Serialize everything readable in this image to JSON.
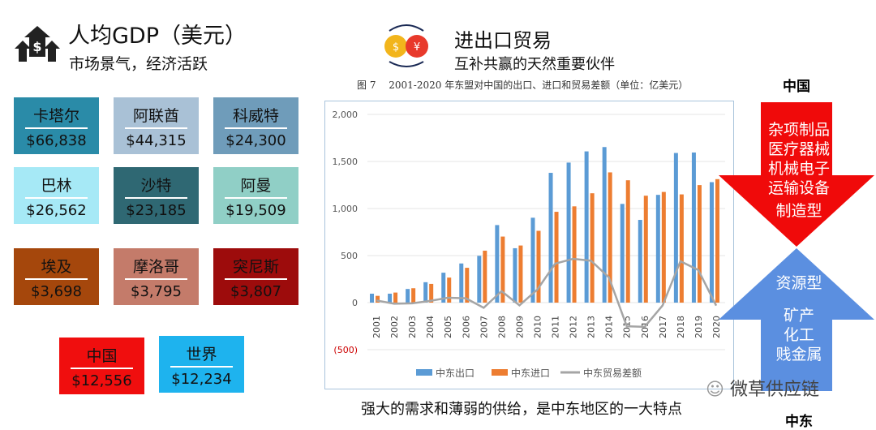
{
  "gdp": {
    "title": "人均GDP（美元）",
    "subtitle": "市场景气，经济活跃",
    "countries": [
      {
        "name": "卡塔尔",
        "value": "$66,838",
        "color": "#2a8ba8"
      },
      {
        "name": "阿联酋",
        "value": "$44,315",
        "color": "#a9c1d6"
      },
      {
        "name": "科威特",
        "value": "$24,300",
        "color": "#6f9cba"
      },
      {
        "name": "巴林",
        "value": "$26,562",
        "color": "#a6e9f6"
      },
      {
        "name": "沙特",
        "value": "$23,185",
        "color": "#2f6873"
      },
      {
        "name": "阿曼",
        "value": "$19,509",
        "color": "#90cfc6"
      },
      {
        "name": "埃及",
        "value": "$3,698",
        "color": "#a5470c"
      },
      {
        "name": "摩洛哥",
        "value": "$3,795",
        "color": "#c47b6a"
      },
      {
        "name": "突尼斯",
        "value": "$3,807",
        "color": "#9d0c0c"
      },
      {
        "name": "中国",
        "value": "$12,556",
        "color": "#f00e0e"
      },
      {
        "name": "世界",
        "value": "$12,234",
        "color": "#1eb3ee"
      }
    ]
  },
  "trade": {
    "title": "进出口贸易",
    "subtitle": "互补共赢的天然重要伙伴",
    "caption": "图 7　 2001-2020 年东盟对中国的出口、进口和贸易差额（单位：亿美元）",
    "bottom_caption": "强大的需求和薄弱的供给，是中东地区的一大特点"
  },
  "flow": {
    "top_label": "中国",
    "bottom_label": "中东",
    "china_exports": [
      "杂项制品",
      "医疗器械",
      "机械电子",
      "运输设备",
      "制造型"
    ],
    "mideast_exports": [
      "资源型",
      "矿产",
      "化工",
      "贱金属"
    ],
    "red": "#f00a0a",
    "blue": "#5b8fe0"
  },
  "watermark": "微草供应链",
  "chart_data": {
    "type": "bar",
    "categories": [
      "2001",
      "2002",
      "2003",
      "2004",
      "2005",
      "2006",
      "2007",
      "2008",
      "2009",
      "2010",
      "2011",
      "2012",
      "2013",
      "2014",
      "2015",
      "2016",
      "2017",
      "2018",
      "2019",
      "2020"
    ],
    "series": [
      {
        "name": "中东出口",
        "type": "bar",
        "color": "#5b9bd5",
        "values": [
          95,
          95,
          145,
          217,
          318,
          416,
          497,
          824,
          578,
          902,
          1379,
          1488,
          1607,
          1653,
          1049,
          879,
          1145,
          1590,
          1595,
          1280
        ]
      },
      {
        "name": "中东进口",
        "type": "bar",
        "color": "#ed7d31",
        "values": [
          72,
          107,
          153,
          199,
          266,
          370,
          552,
          702,
          607,
          763,
          965,
          1023,
          1162,
          1384,
          1300,
          1136,
          1176,
          1150,
          1249,
          1312
        ]
      },
      {
        "name": "中东贸易差额",
        "type": "line",
        "color": "#a5a5a5",
        "values": [
          23,
          -12,
          -8,
          18,
          52,
          46,
          -55,
          122,
          -29,
          139,
          414,
          465,
          445,
          269,
          -251,
          -257,
          -31,
          440,
          346,
          -32
        ]
      }
    ],
    "yticks": [
      "2,000",
      "1,500",
      "1,000",
      "500",
      "0",
      "(500)"
    ],
    "ylim": [
      -500,
      2000
    ],
    "grid": true,
    "legend": "bottom"
  }
}
